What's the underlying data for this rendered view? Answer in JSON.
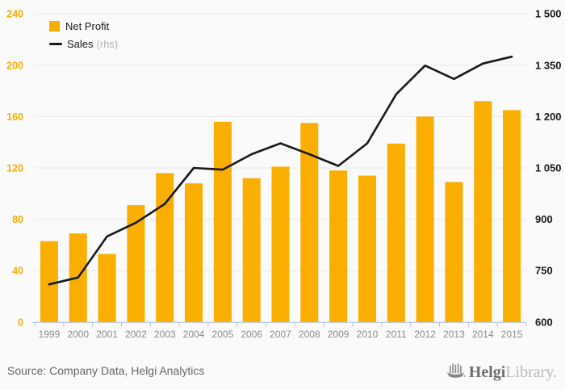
{
  "chart": {
    "colors": {
      "bar": "#F9AE00",
      "line": "#1A1A1A",
      "grid": "#E7E7E7",
      "axis_line": "#B9C4DE",
      "axis_left_text": "#F9AE00",
      "axis_right_text": "#1A1A1A",
      "axis_year_text": "#8C8C8C",
      "legend_muted": "#B3B3B3",
      "background": "#FAFAFA"
    },
    "legend": {
      "sales_suffix": "(rhs)"
    }
  },
  "chart_data": {
    "type": "bar+line",
    "title": "",
    "xlabel": "",
    "ylabel": "",
    "grid": true,
    "legend_position": "top-left",
    "categories": [
      "1999",
      "2000",
      "2001",
      "2002",
      "2003",
      "2004",
      "2005",
      "2006",
      "2007",
      "2008",
      "2009",
      "2010",
      "2011",
      "2012",
      "2013",
      "2014",
      "2015"
    ],
    "series": [
      {
        "name": "Net Profit",
        "type": "bar",
        "axis": "left",
        "values": [
          63,
          69,
          53,
          91,
          116,
          108,
          156,
          112,
          121,
          155,
          118,
          114,
          139,
          160,
          109,
          172,
          165
        ]
      },
      {
        "name": "Sales",
        "type": "line",
        "axis": "right",
        "values": [
          710,
          730,
          850,
          890,
          945,
          1050,
          1045,
          1090,
          1122,
          1090,
          1056,
          1122,
          1265,
          1349,
          1310,
          1355,
          1375
        ]
      }
    ],
    "left_axis": {
      "range": [
        0,
        240
      ],
      "ticks": [
        0,
        40,
        80,
        120,
        160,
        200,
        240
      ],
      "tick_labels": [
        "0",
        "40",
        "80",
        "120",
        "160",
        "200",
        "240"
      ]
    },
    "right_axis": {
      "range": [
        600,
        1500
      ],
      "ticks": [
        600,
        750,
        900,
        1050,
        1200,
        1350,
        1500
      ],
      "tick_labels": [
        "600",
        "750",
        "900",
        "1 050",
        "1 200",
        "1 350",
        "1 500"
      ]
    }
  },
  "footer": {
    "source": "Source: Company Data, Helgi Analytics",
    "logo": {
      "icon": "helgi-ship-icon",
      "brand": "Helgi",
      "brand_suffix": "Library."
    }
  }
}
